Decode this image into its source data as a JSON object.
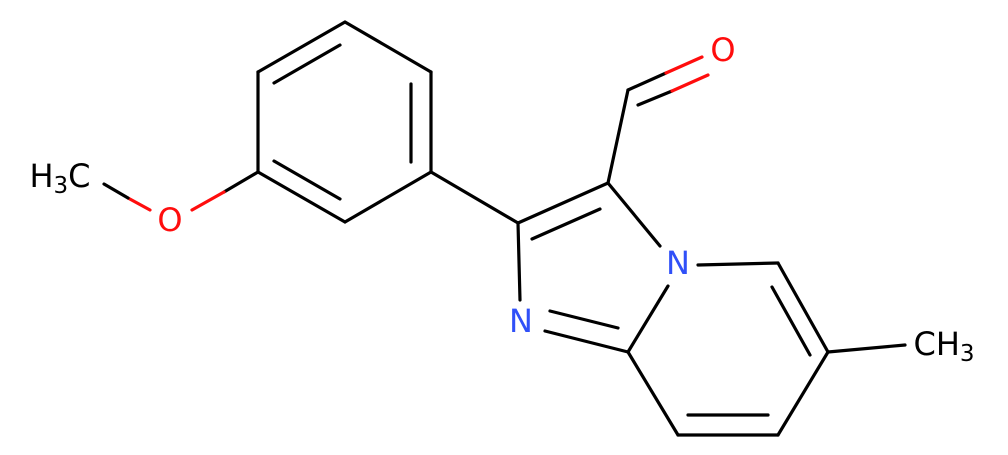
{
  "atoms": [
    {
      "label": [
        "O"
      ],
      "color": "#ff0d0d"
    },
    {
      "label": [
        "H",
        "3",
        "C"
      ],
      "color": "#000000"
    },
    {
      "label": [
        "O"
      ],
      "color": "#ff0d0d"
    },
    {
      "label": [
        "N"
      ],
      "color": "#3050f8"
    },
    {
      "label": [
        "N"
      ],
      "color": "#3050f8"
    },
    {
      "label": [
        "CH",
        "3"
      ],
      "color": "#000000"
    }
  ]
}
